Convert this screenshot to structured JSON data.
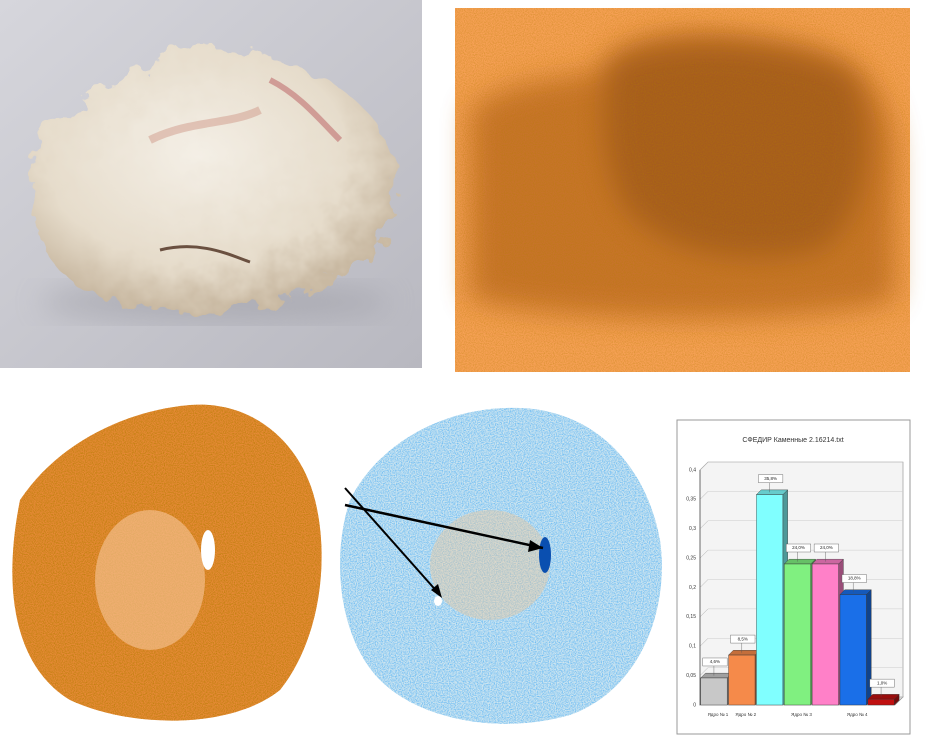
{
  "chart_data": {
    "type": "bar3d",
    "title": "СФЕДИР Каменные 2.16214.txt",
    "categories": [
      "Ядро № 1",
      "Ядро № 2",
      null,
      "Ядро № 3",
      null,
      "Ядро № 4",
      null
    ],
    "values": [
      0.046,
      0.085,
      0.358,
      0.24,
      0.24,
      0.188,
      0.01
    ],
    "value_labels": [
      "4,6%",
      "8,5%",
      "35,8%",
      "24,0%",
      "24,0%",
      "18,8%",
      "1,0%"
    ],
    "colors": [
      "#c8c8c8",
      "#f58a4a",
      "#80ffff",
      "#80f080",
      "#ff80c8",
      "#1a6fe8",
      "#c01010"
    ],
    "ylim": [
      0,
      0.4
    ],
    "yticks": [
      0,
      {
        "value": 0.05,
        "label": "0,05"
      },
      {
        "value": 0.1,
        "label": "0,1"
      },
      {
        "value": 0.15,
        "label": "0,15"
      },
      {
        "value": 0.2,
        "label": "0,2"
      },
      {
        "value": 0.25,
        "label": "0,25"
      },
      {
        "value": 0.3,
        "label": "0,3"
      },
      {
        "value": 0.35,
        "label": "0,35"
      },
      {
        "value": 0.4,
        "label": "0,4"
      }
    ],
    "grid": true
  }
}
